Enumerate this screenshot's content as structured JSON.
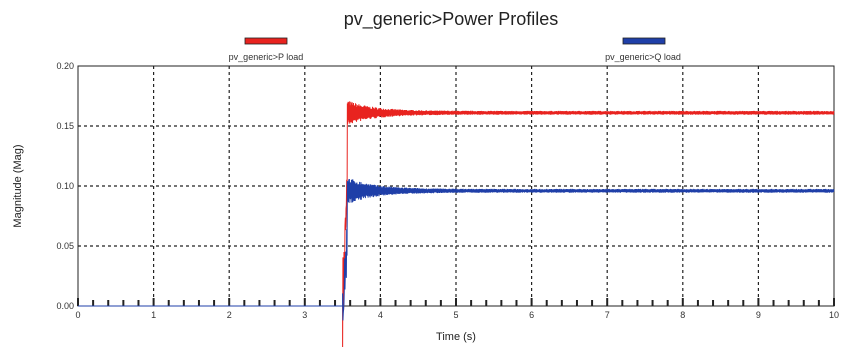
{
  "chart_data": {
    "type": "line",
    "title": "pv_generic>Power Profiles",
    "xlabel": "Time (s)",
    "ylabel": "Magnitude (Mag)",
    "xlim": [
      0,
      10
    ],
    "ylim": [
      0,
      0.2
    ],
    "x_ticks": [
      "0",
      "1",
      "2",
      "3",
      "4",
      "5",
      "6",
      "7",
      "8",
      "9",
      "10"
    ],
    "y_ticks": [
      "0.00",
      "0.05",
      "0.10",
      "0.15",
      "0.20"
    ],
    "grid": true,
    "legend_position": "top",
    "series": [
      {
        "name": "pv_generic>P load",
        "color": "#e8231f",
        "step_time": 3.5,
        "overshoot_peak": 0.17,
        "settled_value": 0.161
      },
      {
        "name": "pv_generic>Q load",
        "color": "#1f3fa8",
        "step_time": 3.5,
        "overshoot_peak": 0.106,
        "settled_value": 0.096
      }
    ]
  }
}
